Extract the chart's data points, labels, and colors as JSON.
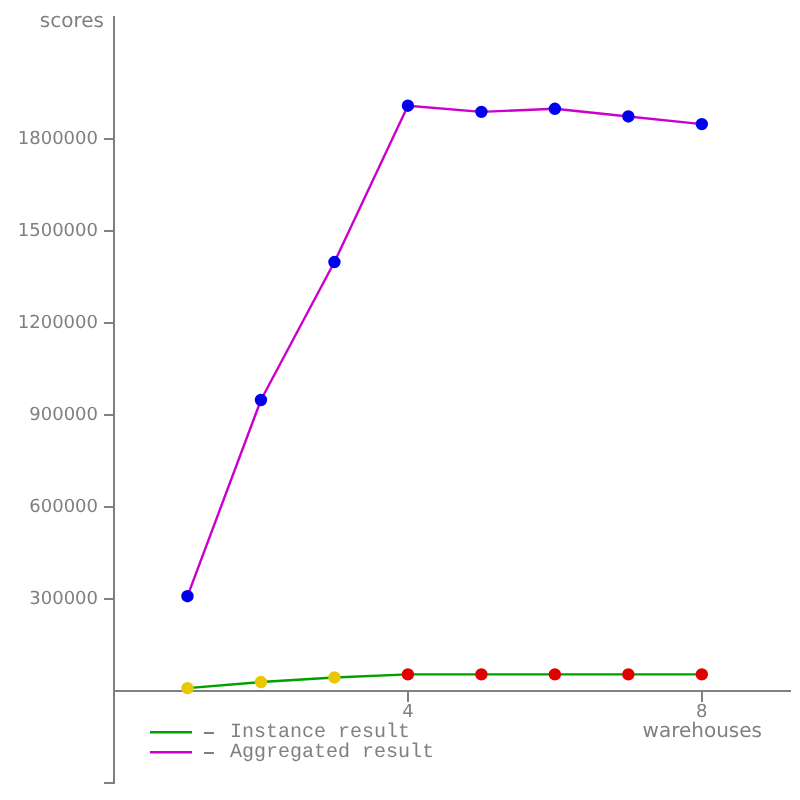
{
  "chart_data": {
    "type": "line",
    "xlabel": "warehouses",
    "ylabel": "scores",
    "x": [
      1,
      2,
      3,
      4,
      5,
      6,
      7,
      8
    ],
    "series": [
      {
        "name": "Instance result",
        "color": "#00a000",
        "colors": [
          "#e8c800",
          "#e8c800",
          "#e8c800",
          "#e00000",
          "#e00000",
          "#e00000",
          "#e00000",
          "#e00000"
        ],
        "values": [
          10000,
          30000,
          45000,
          55000,
          55000,
          55000,
          55000,
          55000
        ]
      },
      {
        "name": "Aggregated result",
        "color": "#cc00cc",
        "colors": [
          "#0000ee",
          "#0000ee",
          "#0000ee",
          "#0000ee",
          "#0000ee",
          "#0000ee",
          "#0000ee",
          "#0000ee"
        ],
        "values": [
          310000,
          950000,
          1400000,
          1910000,
          1890000,
          1900000,
          1875000,
          1850000
        ]
      }
    ],
    "xlim": [
      0,
      9.2
    ],
    "xticks": [
      4,
      8
    ],
    "ylim": [
      -300000,
      2200000
    ],
    "yticks": [
      {
        "value": -300000,
        "label": null
      },
      300000,
      600000,
      900000,
      1200000,
      1500000,
      1800000
    ],
    "grid": false,
    "legend": "bottom left",
    "marker": "circle",
    "line_style": "solid"
  }
}
